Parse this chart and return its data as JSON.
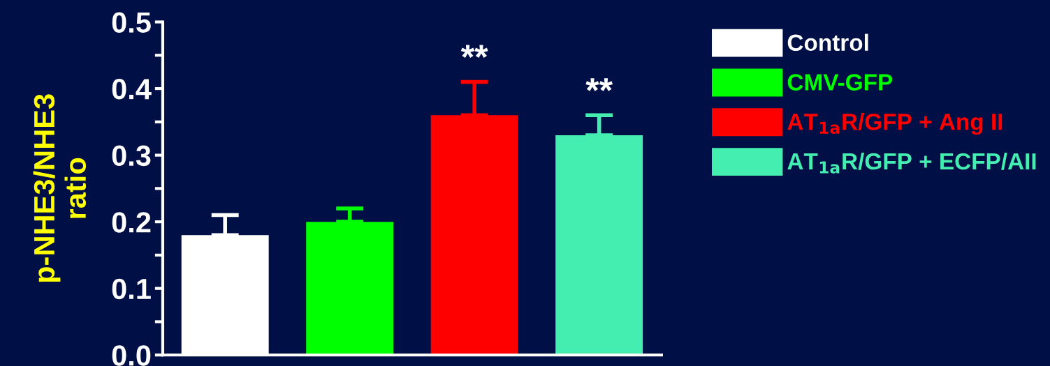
{
  "chart_data": {
    "type": "bar",
    "ylabel": "p-NHE3/NHE3\nratio",
    "categories": [
      null,
      null,
      null,
      null
    ],
    "series": [
      {
        "name": "Control",
        "color": "#ffffff",
        "values": [
          0.18,
          null,
          null,
          null
        ],
        "errors": [
          [
            0.18,
            0.21
          ],
          null,
          null,
          null
        ]
      },
      {
        "name": "CMV-GFP",
        "color": "#00ff00",
        "values": [
          null,
          0.2,
          null,
          null
        ],
        "errors": [
          null,
          [
            0.2,
            0.22
          ],
          null,
          null
        ]
      },
      {
        "name": "AT$_{1a}$R/GFP + Ang II",
        "color": "#ff0000",
        "values": [
          null,
          null,
          0.36,
          null
        ],
        "errors": [
          null,
          null,
          [
            0.36,
            0.41
          ],
          null
        ]
      },
      {
        "name": "AT$_{1a}$R/GFP + ECFP/AII",
        "color": "#44eeb0",
        "values": [
          null,
          null,
          null,
          0.33
        ],
        "errors": [
          null,
          null,
          null,
          [
            0.33,
            0.36
          ]
        ]
      }
    ],
    "annotations": [
      "**",
      "**"
    ],
    "ylim": [
      0,
      0.5
    ],
    "yticks": [
      {
        "value": 0,
        "label": "0.0"
      },
      {
        "value": 0.05,
        "label": null
      },
      0.1,
      {
        "value": 0.15,
        "label": null
      },
      0.2,
      {
        "value": 0.25,
        "label": null
      },
      0.3,
      {
        "value": 0.35,
        "label": null
      },
      0.4,
      {
        "value": 0.45,
        "label": null
      },
      0.5
    ],
    "grid": false,
    "legend": "right"
  }
}
